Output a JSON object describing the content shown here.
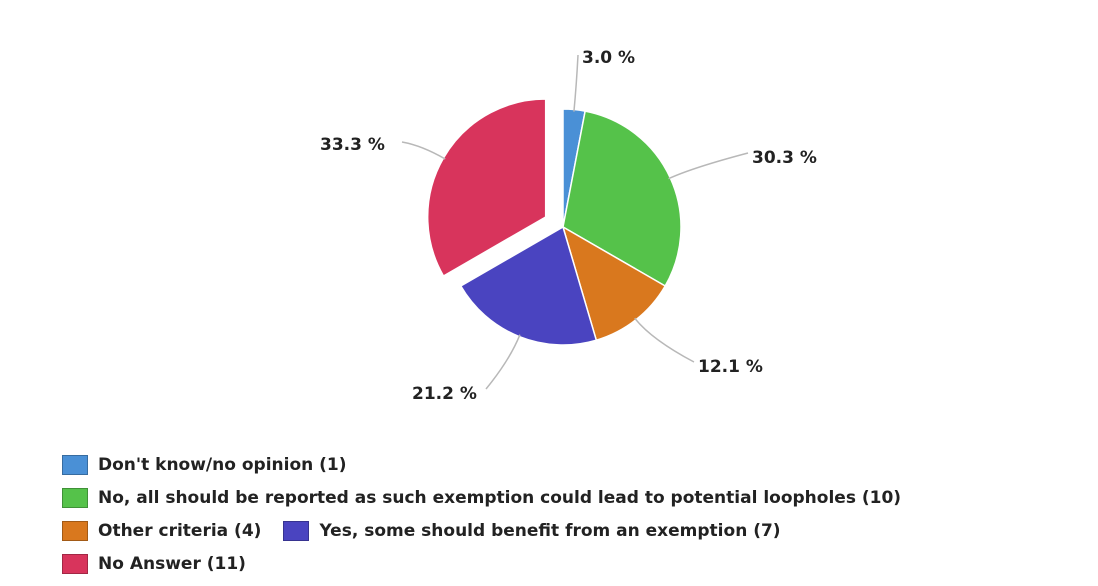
{
  "chart_data": {
    "type": "pie",
    "title": "",
    "slices": [
      {
        "label": "Don't know/no opinion",
        "count": 1,
        "value": 3.0,
        "value_label": "3.0 %",
        "color": "#4a90d6",
        "exploded": false
      },
      {
        "label": "No, all should be reported as such exemption could lead to potential loopholes",
        "count": 10,
        "value": 30.3,
        "value_label": "30.3 %",
        "color": "#55c24a",
        "exploded": false
      },
      {
        "label": "Other criteria",
        "count": 4,
        "value": 12.1,
        "value_label": "12.1 %",
        "color": "#d9781e",
        "exploded": false
      },
      {
        "label": "Yes, some should benefit from an exemption",
        "count": 7,
        "value": 21.2,
        "value_label": "21.2 %",
        "color": "#4a44c0",
        "exploded": false
      },
      {
        "label": "No Answer",
        "count": 11,
        "value": 33.3,
        "value_label": "33.3 %",
        "color": "#d8345c",
        "exploded": true
      }
    ],
    "legend": {
      "placement": "bottom-left",
      "entries": [
        {
          "text": "Don't know/no opinion (1)",
          "color": "#4a90d6"
        },
        {
          "text": "No, all should be reported as such exemption could lead to potential loopholes (10)",
          "color": "#55c24a"
        },
        {
          "text": "Other criteria (4)",
          "color": "#d9781e"
        },
        {
          "text": "Yes, some should benefit from an exemption (7)",
          "color": "#4a44c0"
        },
        {
          "text": "No Answer (11)",
          "color": "#d8345c"
        }
      ]
    }
  }
}
